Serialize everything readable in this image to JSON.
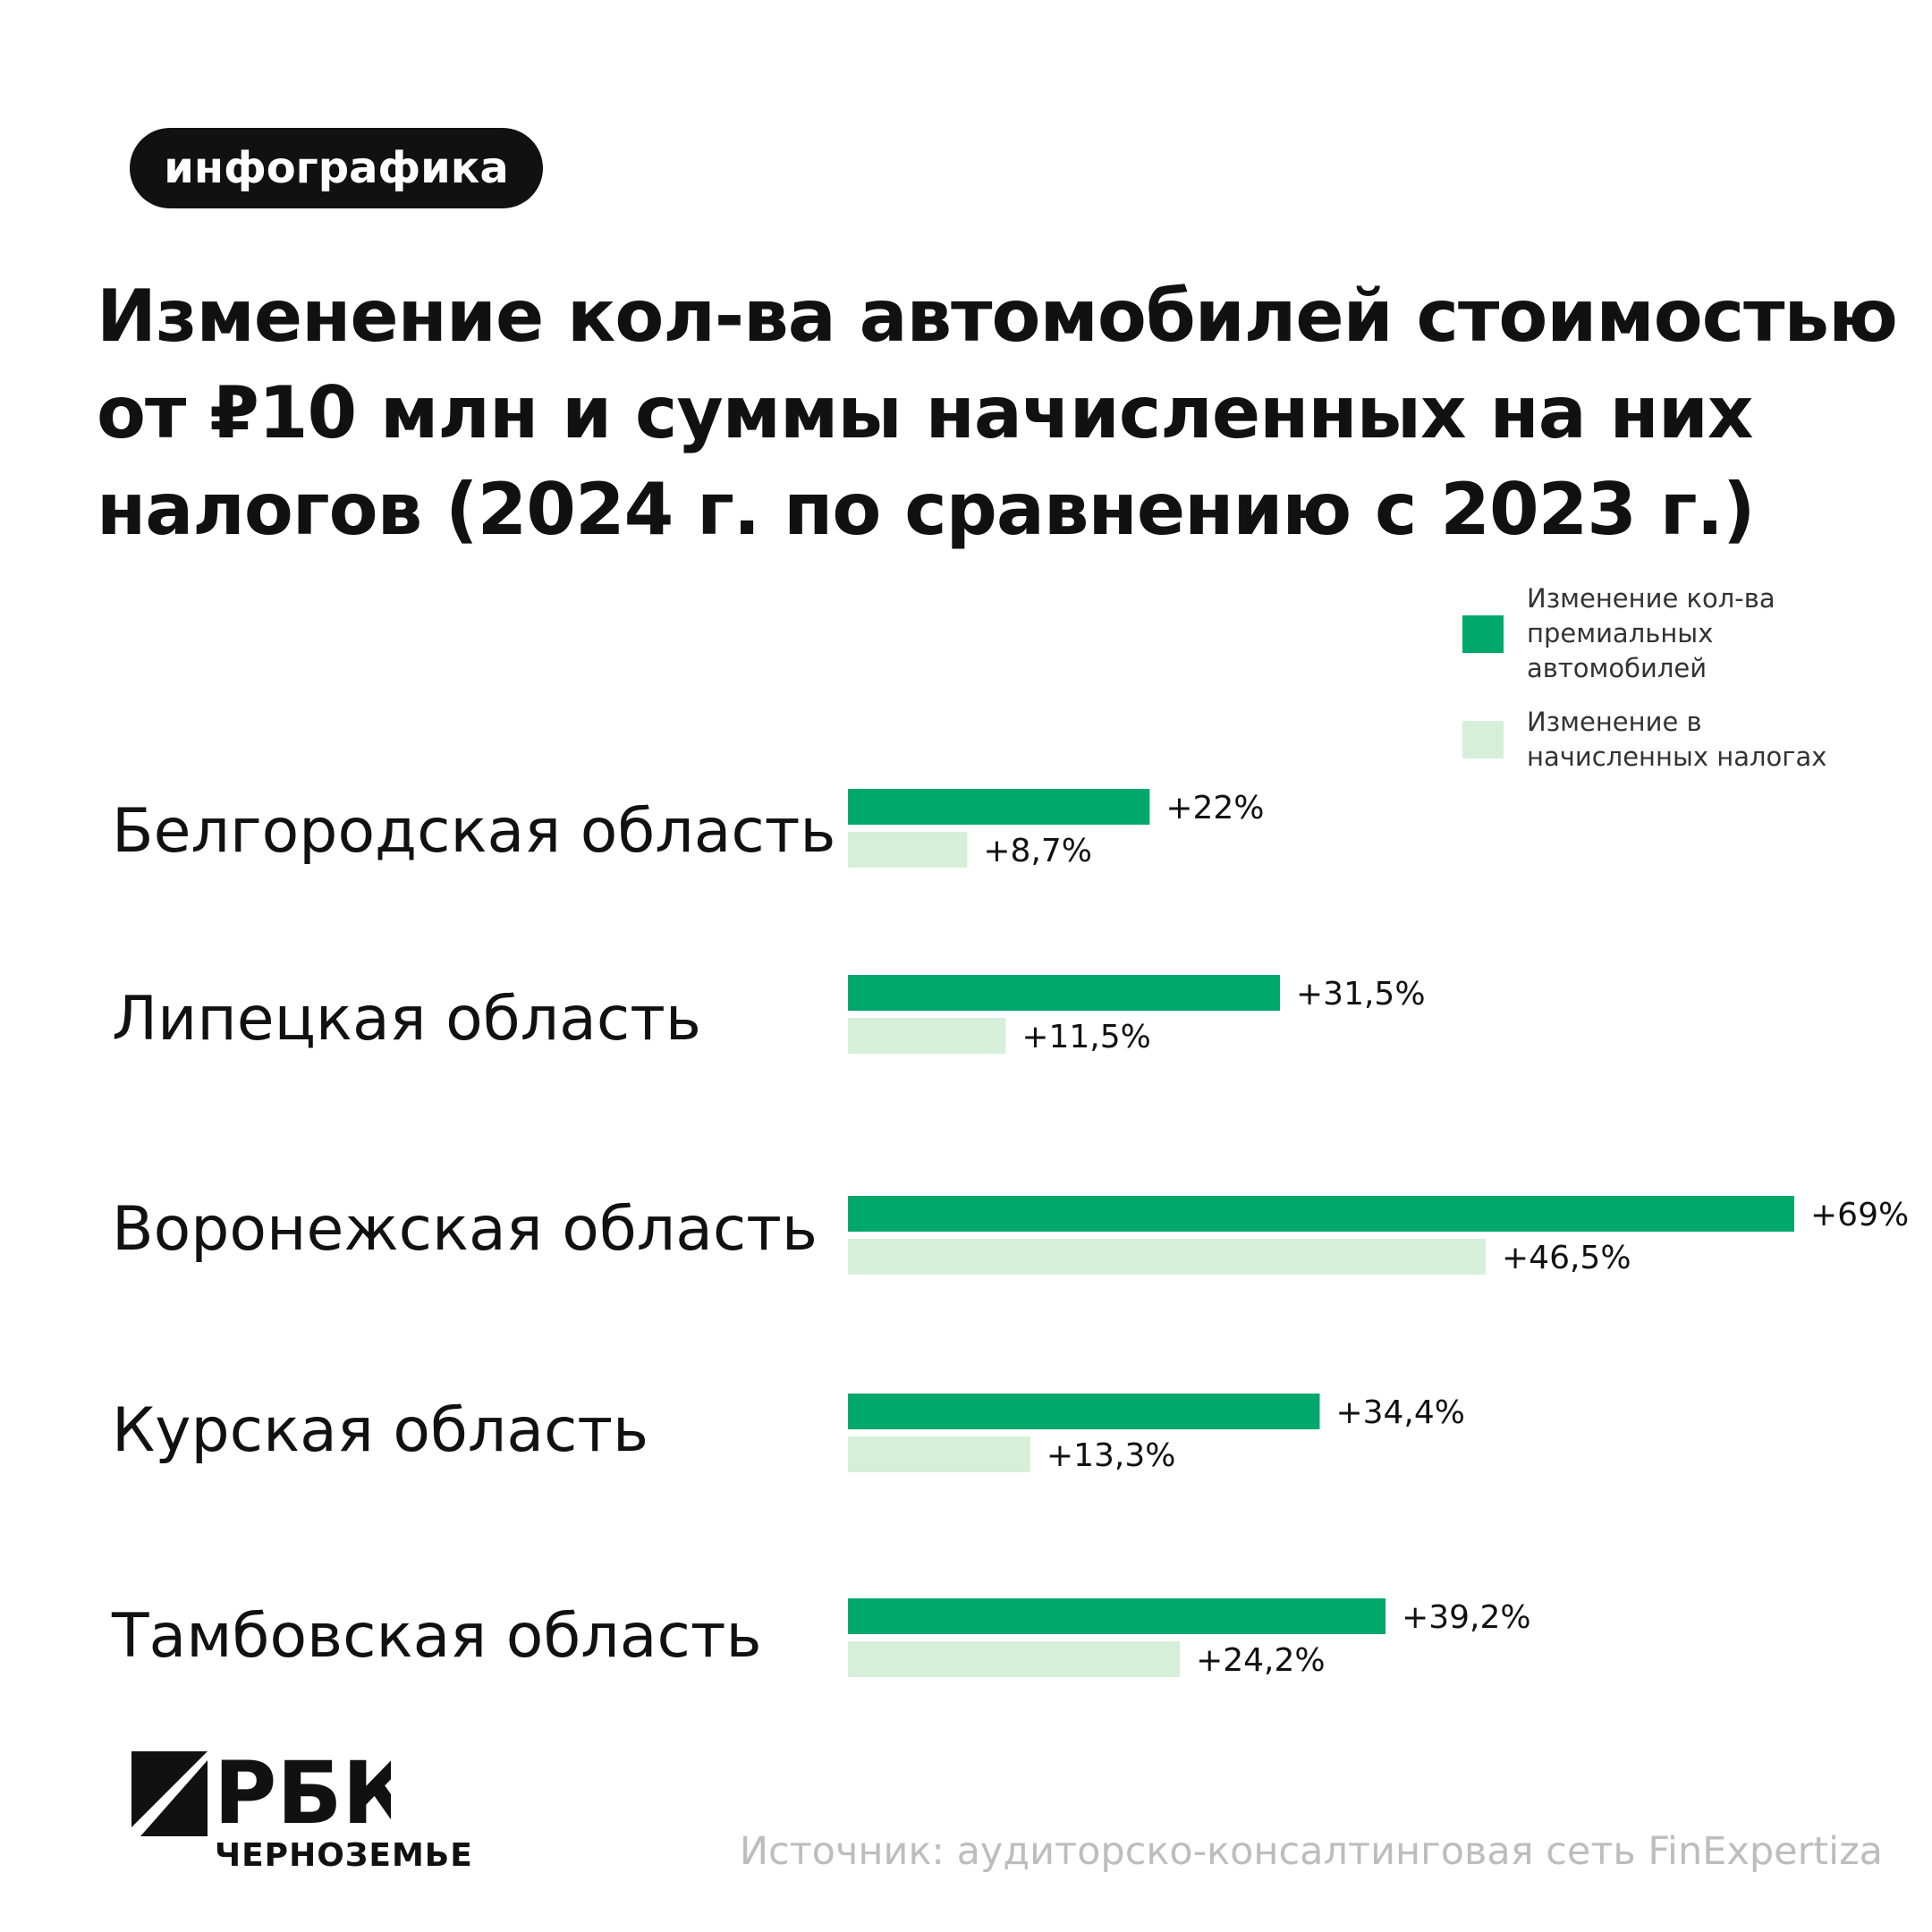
{
  "badge": "инфографика",
  "title_lines": [
    "Изменение кол-ва автомобилей стоимостью",
    "от ₽10 млн и суммы начисленных на них",
    "налогов (2024 г. по сравнению с 2023 г.)"
  ],
  "colors": {
    "series_1": "#00a86b",
    "series_2": "#d6efd9",
    "text": "#111111",
    "source": "#bdbdbd"
  },
  "chart_data": {
    "type": "bar",
    "orientation": "horizontal",
    "categories": [
      "Белгородская область",
      "Липецкая область",
      "Воронежская область",
      "Курская область",
      "Тамбовская область"
    ],
    "series": [
      {
        "name": "Изменение кол-ва\nпремиальных\nавтомобилей",
        "values": [
          22,
          31.5,
          69,
          34.4,
          39.2
        ],
        "labels": [
          "+22%",
          "+31,5%",
          "+69%",
          "+34,4%",
          "+39,2%"
        ],
        "color": "#00a86b"
      },
      {
        "name": "Изменение в\nначисленных налогах",
        "values": [
          8.7,
          11.5,
          46.5,
          13.3,
          24.2
        ],
        "labels": [
          "+8,7%",
          "+11,5%",
          "+46,5%",
          "+13,3%",
          "+24,2%"
        ],
        "color": "#d6efd9"
      }
    ],
    "unit": "%",
    "legend_position": "top-right",
    "grid": false
  },
  "logo": {
    "name": "РБК",
    "subtitle": "ЧЕРНОЗЕМЬЕ"
  },
  "source": "Источник: аудиторско-консалтинговая сеть FinExpertiza"
}
